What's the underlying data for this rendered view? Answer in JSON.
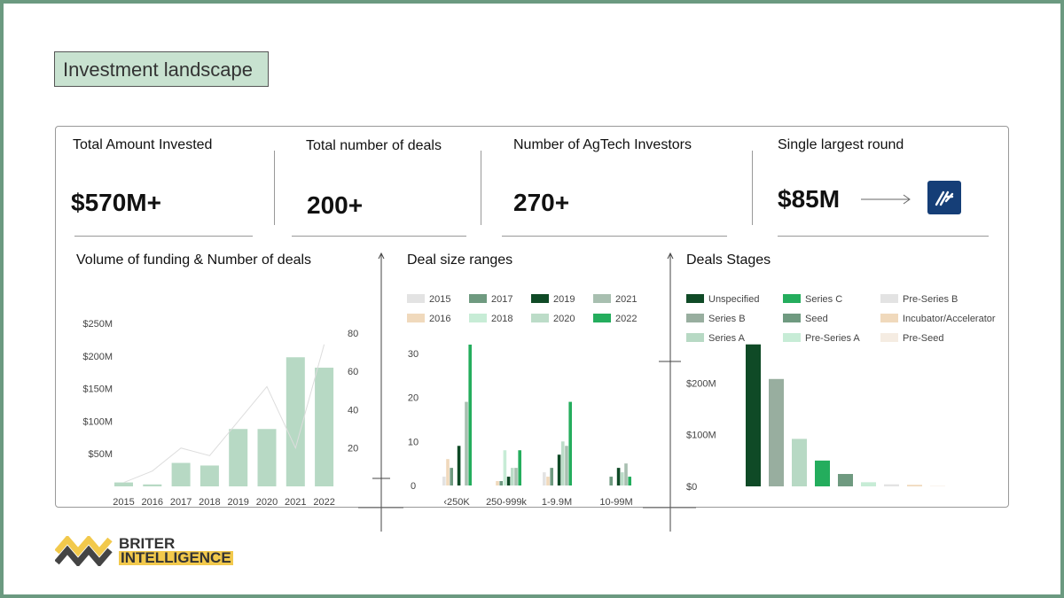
{
  "section_title": "Investment landscape",
  "kpis": [
    {
      "label": "Total Amount Invested",
      "value": "$570M+"
    },
    {
      "label": "Total number of deals",
      "value": "200+"
    },
    {
      "label": "Number of AgTech Investors",
      "value": "270+"
    },
    {
      "label": "Single largest round",
      "value": "$85M"
    }
  ],
  "brand": {
    "line1": "BRITER",
    "line2": "INTELLIGENCE"
  },
  "colors": {
    "frame": "#6b9a80",
    "title_bg": "#c8e2d0",
    "logo_bg": "#153e77",
    "brand_yellow": "#f2c94c"
  },
  "chart_data": [
    {
      "type": "bar",
      "title": "Volume of funding & Number of deals",
      "categories": [
        "2015",
        "2016",
        "2017",
        "2018",
        "2019",
        "2020",
        "2021",
        "2022"
      ],
      "series": [
        {
          "values": [
            6,
            3,
            36,
            32,
            88,
            88,
            198,
            182
          ],
          "color": "#b7d9c4"
        },
        {
          "type": "line",
          "axis": "right",
          "values": [
            2,
            8,
            20,
            16,
            34,
            52,
            20,
            74
          ],
          "color": "#dddddd"
        }
      ],
      "y_ticks_left": [
        "$50M",
        "$100M",
        "$150M",
        "$200M",
        "$250M"
      ],
      "y_ticks_left_values": [
        50,
        100,
        150,
        200,
        250
      ],
      "ylim": [
        0,
        250
      ],
      "y_ticks_right": [
        "20",
        "40",
        "60",
        "80"
      ],
      "y_ticks_right_values": [
        20,
        40,
        60,
        80
      ],
      "ylim_right": [
        0,
        85
      ]
    },
    {
      "type": "bar",
      "title": "Deal size ranges",
      "categories": [
        "‹250K",
        "250-999k",
        "1-9.9M",
        "10-99M"
      ],
      "legend": [
        {
          "name": "2015",
          "color": "#e3e3e3"
        },
        {
          "name": "2017",
          "color": "#6f9a80"
        },
        {
          "name": "2019",
          "color": "#0f4a26"
        },
        {
          "name": "2021",
          "color": "#a8bfb0"
        },
        {
          "name": "2016",
          "color": "#f0d9bc"
        },
        {
          "name": "2018",
          "color": "#c7ecd6"
        },
        {
          "name": "2020",
          "color": "#bcdcc8"
        },
        {
          "name": "2022",
          "color": "#24ad5d"
        }
      ],
      "series": [
        {
          "name": "2015",
          "values": [
            2,
            0,
            3,
            0
          ]
        },
        {
          "name": "2016",
          "values": [
            6,
            1,
            2,
            0
          ]
        },
        {
          "name": "2017",
          "values": [
            4,
            1,
            4,
            2
          ]
        },
        {
          "name": "2018",
          "values": [
            0,
            8,
            0,
            0
          ]
        },
        {
          "name": "2019",
          "values": [
            9,
            2,
            7,
            4
          ]
        },
        {
          "name": "2020",
          "values": [
            0,
            4,
            10,
            3
          ]
        },
        {
          "name": "2021",
          "values": [
            19,
            4,
            9,
            5
          ]
        },
        {
          "name": "2022",
          "values": [
            32,
            8,
            19,
            2
          ]
        }
      ],
      "y_ticks": [
        "0",
        "10",
        "20",
        "30"
      ],
      "y_tick_values": [
        0,
        10,
        20,
        30
      ],
      "ylim": [
        0,
        33
      ]
    },
    {
      "type": "bar",
      "title": "Deals Stages",
      "categories": [
        "Unspecified",
        "Series B",
        "Series A",
        "Series C",
        "Seed",
        "Pre-Series A",
        "Pre-Series B",
        "Incubator/Accelerator",
        "Pre-Seed"
      ],
      "values": [
        275,
        208,
        92,
        50,
        24,
        8,
        4,
        3,
        1
      ],
      "colors": [
        "#0f4a26",
        "#98ae9f",
        "#b7d9c4",
        "#24ad5d",
        "#6f9a80",
        "#c7ecd6",
        "#e3e3e3",
        "#f0d9bc",
        "#f5ece2"
      ],
      "y_ticks": [
        "$0",
        "$100M",
        "$200M"
      ],
      "y_tick_values": [
        0,
        100,
        200
      ],
      "ylim": [
        0,
        290
      ]
    }
  ]
}
